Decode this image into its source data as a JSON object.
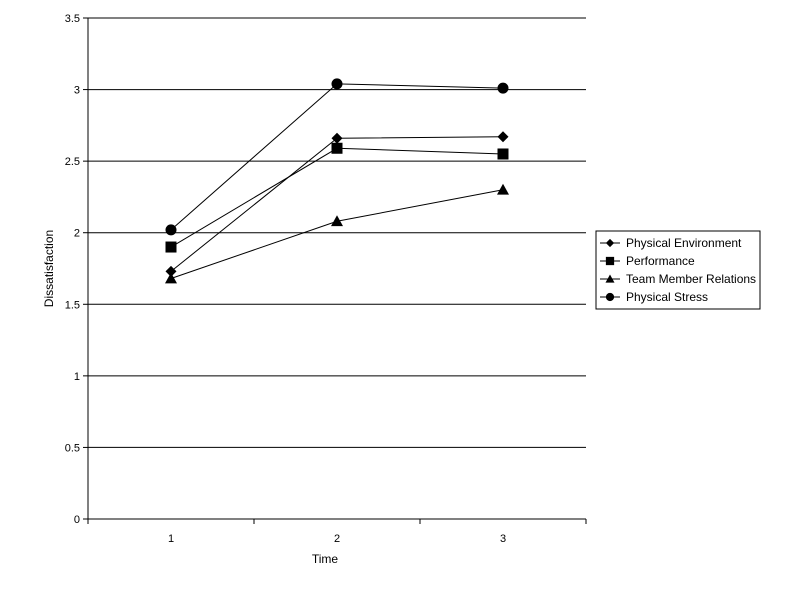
{
  "chart_data": {
    "type": "line",
    "xlabel": "Time",
    "ylabel": "Dissatisfaction",
    "categories": [
      "1",
      "2",
      "3"
    ],
    "ylim": [
      0,
      3.5
    ],
    "yticks": [
      "0",
      "0.5",
      "1",
      "1.5",
      "2",
      "2.5",
      "3",
      "3.5"
    ],
    "grid": true,
    "legend_position": "right",
    "series": [
      {
        "name": "Physical Environment",
        "marker": "diamond",
        "values": [
          1.73,
          2.66,
          2.67
        ]
      },
      {
        "name": "Performance",
        "marker": "square",
        "values": [
          1.9,
          2.59,
          2.55
        ]
      },
      {
        "name": "Team Member Relations",
        "marker": "triangle",
        "values": [
          1.68,
          2.08,
          2.3
        ]
      },
      {
        "name": "Physical Stress",
        "marker": "circle",
        "values": [
          2.02,
          3.04,
          3.01
        ]
      }
    ]
  }
}
